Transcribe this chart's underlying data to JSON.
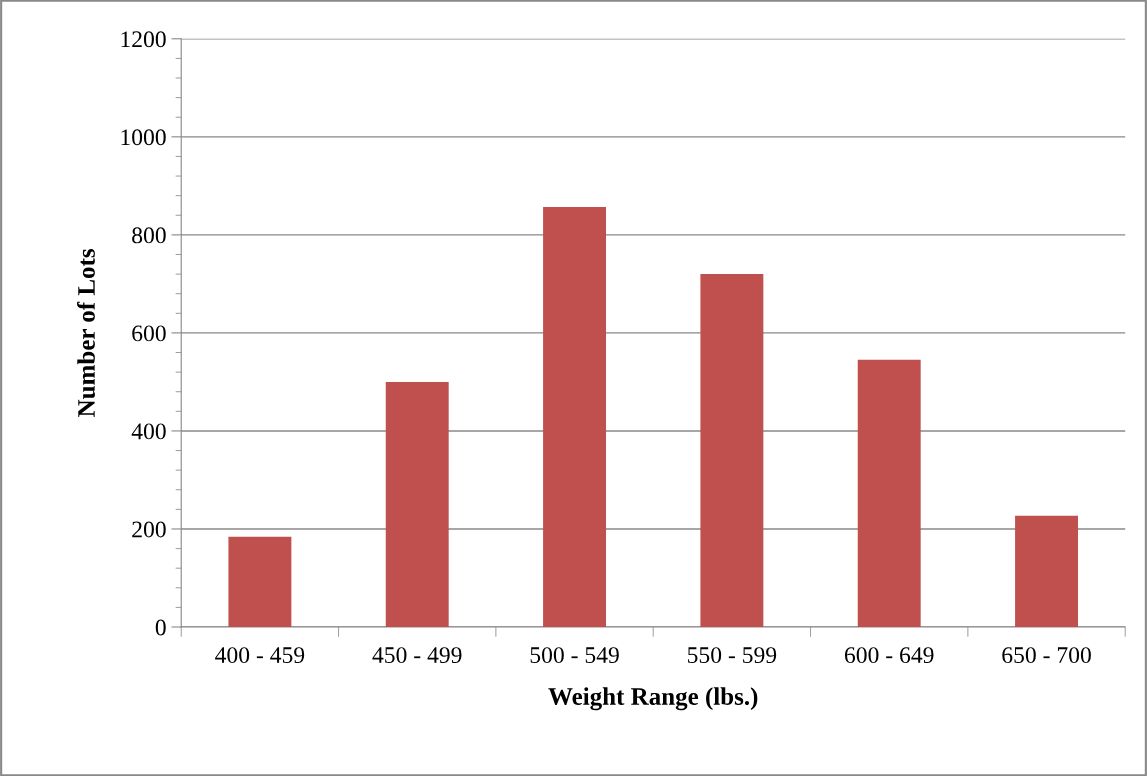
{
  "chart_data": {
    "type": "bar",
    "xlabel": "Weight Range (lbs.)",
    "ylabel": "Number of Lots",
    "categories": [
      "400 - 459",
      "450 - 499",
      "500 - 549",
      "550 - 599",
      "600 - 649",
      "650 - 700"
    ],
    "values": [
      184,
      500,
      857,
      720,
      545,
      227
    ],
    "color": "#c0504d",
    "ylim": [
      0,
      1200
    ],
    "yticks": [
      0,
      200,
      400,
      600,
      800,
      1000,
      1200
    ],
    "grid": "y",
    "legend": false
  }
}
